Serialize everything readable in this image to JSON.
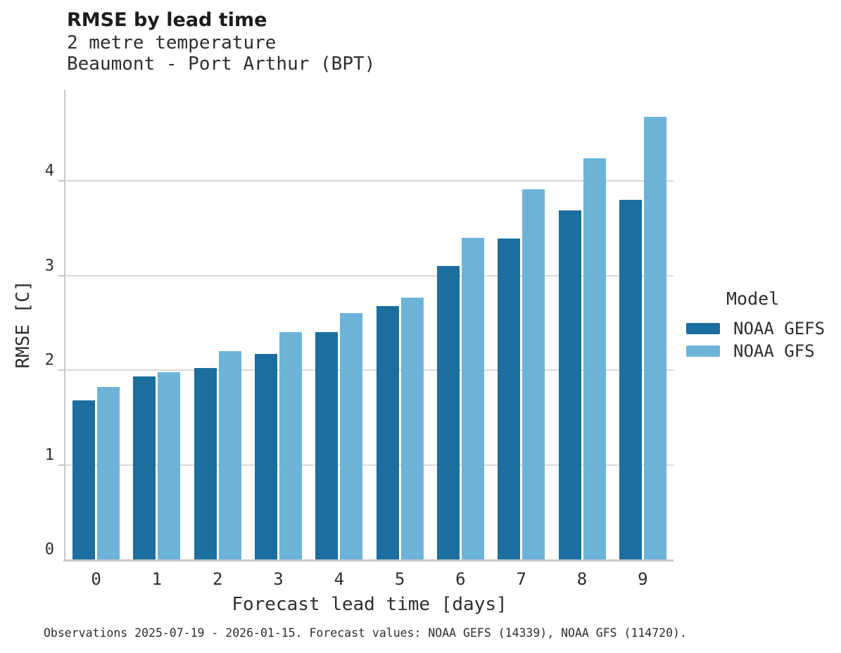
{
  "header": {
    "title": "RMSE by lead time",
    "subtitle_line1": "2 metre temperature",
    "subtitle_line2": "Beaumont - Port Arthur (BPT)"
  },
  "legend": {
    "title": "Model",
    "entries": [
      {
        "label": "NOAA GEFS",
        "color": "#1b6e9d"
      },
      {
        "label": "NOAA GFS",
        "color": "#6db3d8"
      }
    ]
  },
  "caption": "Observations 2025-07-19 - 2026-01-15. Forecast values: NOAA GEFS (14339), NOAA GFS (114720).",
  "colors": {
    "gefs_bar": "#1b6e9d",
    "gfs_bar": "#6db3d8",
    "gridline": "#d9d9d9",
    "axis": "#c8c8c8",
    "title_text": "#1c1c1c",
    "body_text": "#2e2e2e"
  },
  "chart_data": {
    "type": "bar",
    "title": "RMSE by lead time",
    "subtitle": "2 metre temperature / Beaumont - Port Arthur (BPT)",
    "xlabel": "Forecast lead time [days]",
    "ylabel": "RMSE [C]",
    "categories": [
      "0",
      "1",
      "2",
      "3",
      "4",
      "5",
      "6",
      "7",
      "8",
      "9"
    ],
    "series": [
      {
        "name": "NOAA GEFS",
        "color": "#1b6e9d",
        "values": [
          1.68,
          1.93,
          2.02,
          2.17,
          2.4,
          2.68,
          3.1,
          3.39,
          3.69,
          3.8
        ]
      },
      {
        "name": "NOAA GFS",
        "color": "#6db3d8",
        "values": [
          1.82,
          1.98,
          2.2,
          2.4,
          2.6,
          2.77,
          3.4,
          3.91,
          4.24,
          4.68
        ]
      }
    ],
    "ylim": [
      0,
      4.96
    ],
    "yticks": [
      0,
      1,
      2,
      3,
      4
    ],
    "grid": true,
    "legend_position": "right"
  }
}
